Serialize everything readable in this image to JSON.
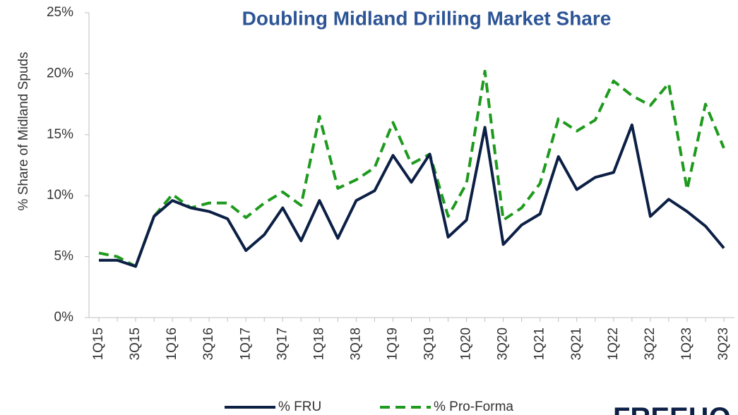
{
  "chart_data": {
    "type": "line",
    "title": "Doubling Midland Drilling Market Share",
    "y_label": "% Share of Midland Spuds",
    "logo": "FREEHO",
    "categories": [
      "1Q15",
      null,
      "3Q15",
      null,
      "1Q16",
      null,
      "3Q16",
      null,
      "1Q17",
      null,
      "3Q17",
      null,
      "1Q18",
      null,
      "3Q18",
      null,
      "1Q19",
      null,
      "3Q19",
      null,
      "1Q20",
      null,
      "3Q20",
      null,
      "1Q21",
      null,
      "3Q21",
      null,
      "1Q22",
      null,
      "3Q22",
      null,
      "1Q23",
      null,
      "3Q23"
    ],
    "series": [
      {
        "name": "% FRU",
        "color": "#0c1f45",
        "dash": false,
        "values": [
          4.7,
          4.7,
          4.2,
          8.3,
          9.6,
          9.0,
          8.7,
          8.1,
          5.5,
          6.8,
          9.0,
          6.3,
          9.6,
          6.5,
          9.6,
          10.4,
          13.3,
          11.1,
          13.4,
          6.6,
          8.0,
          15.6,
          6.0,
          7.6,
          8.5,
          13.2,
          10.5,
          11.5,
          11.9,
          15.8,
          8.3,
          9.7,
          8.7,
          7.5,
          5.7
        ]
      },
      {
        "name": "% Pro-Forma",
        "color": "#1e9a1e",
        "dash": true,
        "values": [
          5.3,
          5.0,
          4.2,
          8.3,
          10.1,
          9.0,
          9.4,
          9.4,
          8.2,
          9.4,
          10.3,
          9.2,
          16.5,
          10.6,
          11.3,
          12.3,
          16.0,
          12.6,
          13.4,
          8.3,
          11.0,
          20.2,
          8.0,
          9.0,
          11.0,
          16.3,
          15.3,
          16.2,
          19.4,
          18.2,
          17.4,
          19.2,
          10.5,
          17.5,
          13.9
        ]
      }
    ],
    "ylim": [
      0,
      25
    ],
    "yticks": [
      {
        "value": 0,
        "label": "0%"
      },
      {
        "value": 5,
        "label": "5%"
      },
      {
        "value": 10,
        "label": "10%"
      },
      {
        "value": 15,
        "label": "15%"
      },
      {
        "value": 20,
        "label": "20%"
      },
      {
        "value": 25,
        "label": "25%"
      }
    ]
  }
}
